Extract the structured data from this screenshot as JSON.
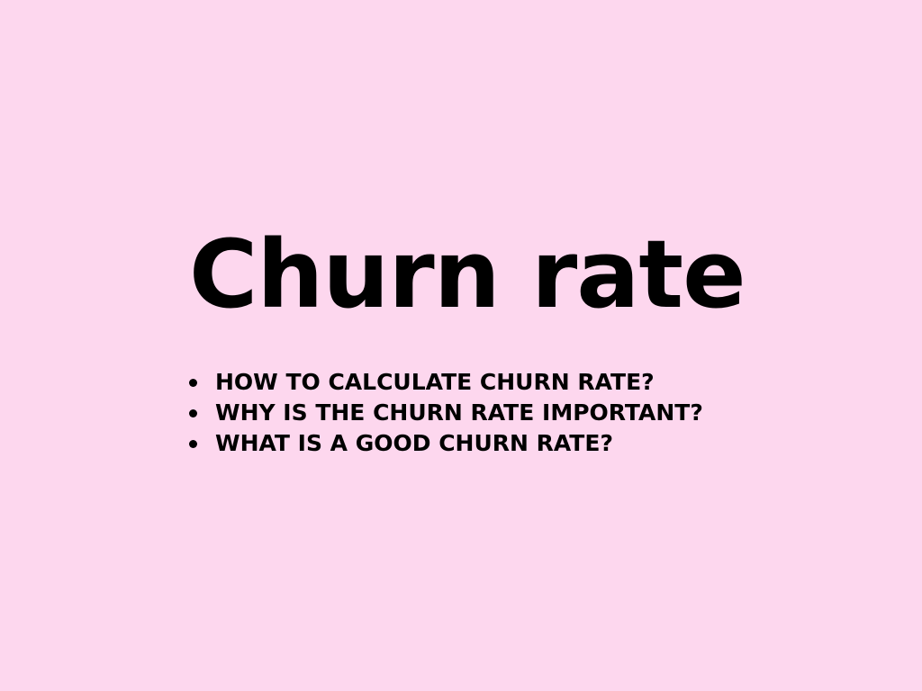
{
  "title": "Churn rate",
  "bullets": [
    "HOW TO CALCULATE CHURN RATE?",
    "WHY IS THE CHURN RATE IMPORTANT?",
    "WHAT IS A GOOD CHURN RATE?"
  ],
  "colors": {
    "background": "#fdd7ee",
    "text": "#000000"
  }
}
